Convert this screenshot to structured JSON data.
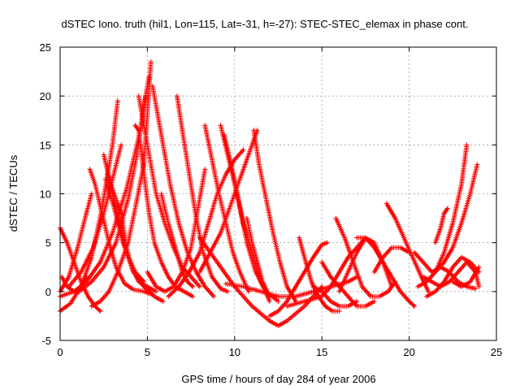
{
  "chart_data": {
    "type": "scatter",
    "title": "dSTEC Iono. truth (hil1, Lon=115, Lat=-31, h=-27): STEC-STEC_elemax in phase cont.",
    "xlabel": "GPS time / hours of day 284 of year 2006",
    "ylabel": "dSTEC  / TECUs",
    "xlim": [
      0,
      25
    ],
    "ylim": [
      -5,
      25
    ],
    "xticks": [
      "0",
      "5",
      "10",
      "15",
      "20",
      "25"
    ],
    "yticks": [
      "-5",
      "0",
      "5",
      "10",
      "15",
      "20",
      "25"
    ],
    "grid": true,
    "marker": "plus",
    "color": "#ff0000",
    "series": [
      {
        "x": [
          0.0,
          0.6,
          1.2,
          1.8,
          2.4,
          3.0,
          3.3
        ],
        "y": [
          -2.0,
          -1.2,
          0.5,
          3.5,
          8.5,
          15.0,
          19.5
        ]
      },
      {
        "x": [
          1.1,
          1.8,
          2.5,
          3.2,
          3.9,
          4.4,
          4.8,
          5.1
        ],
        "y": [
          0.0,
          1.0,
          2.5,
          5.0,
          9.5,
          14.0,
          19.0,
          22.0
        ]
      },
      {
        "x": [
          0.0,
          0.8,
          1.5,
          2.3,
          3.0,
          3.8,
          4.6,
          4.9
        ],
        "y": [
          -0.5,
          0.0,
          1.0,
          3.0,
          6.0,
          10.5,
          16.5,
          20.0
        ]
      },
      {
        "x": [
          0.5,
          1.2,
          1.9,
          2.5,
          3.0,
          3.5
        ],
        "y": [
          0.5,
          2.0,
          4.5,
          8.0,
          11.5,
          15.0
        ]
      },
      {
        "x": [
          1.8,
          2.3,
          2.8,
          3.3,
          3.9,
          4.3,
          4.8,
          5.2
        ],
        "y": [
          -1.5,
          -1.0,
          0.0,
          2.0,
          5.0,
          8.5,
          13.0,
          23.5
        ]
      },
      {
        "x": [
          0.0,
          0.4,
          0.8,
          1.2,
          1.6,
          2.0,
          2.3
        ],
        "y": [
          6.5,
          5.0,
          3.0,
          1.0,
          -0.5,
          -1.5,
          -2.0
        ]
      },
      {
        "x": [
          0.1,
          0.4,
          0.8,
          1.2,
          1.5
        ],
        "y": [
          1.5,
          0.5,
          0.0,
          0.5,
          1.5
        ]
      },
      {
        "x": [
          0.0,
          0.5,
          1.0,
          1.5,
          1.8
        ],
        "y": [
          0.0,
          1.5,
          4.5,
          8.0,
          10.0
        ]
      },
      {
        "x": [
          1.7,
          2.0,
          2.4,
          2.8,
          3.2,
          3.7,
          4.2,
          4.8,
          5.3
        ],
        "y": [
          12.5,
          11.0,
          8.0,
          5.0,
          2.5,
          0.8,
          0.2,
          0.0,
          -0.3
        ]
      },
      {
        "x": [
          2.5,
          3.0,
          3.4,
          3.8,
          4.3,
          4.8
        ],
        "y": [
          14.0,
          10.0,
          7.0,
          4.0,
          2.0,
          1.0
        ]
      },
      {
        "x": [
          2.7,
          3.1,
          3.5,
          3.8,
          4.1,
          4.5,
          5.0,
          5.5
        ],
        "y": [
          12.0,
          10.0,
          8.0,
          4.5,
          2.5,
          1.0,
          0.5,
          0.0
        ]
      },
      {
        "x": [
          2.6,
          3.1,
          3.6,
          4.2,
          4.8,
          5.4,
          5.9
        ],
        "y": [
          11.5,
          8.5,
          5.0,
          2.0,
          0.5,
          -0.5,
          -1.0
        ]
      },
      {
        "x": [
          4.5,
          5.0,
          5.5,
          6.0,
          6.5,
          7.0,
          7.5,
          8.0
        ],
        "y": [
          20.0,
          15.0,
          10.0,
          7.0,
          4.5,
          2.5,
          1.5,
          0.5
        ]
      },
      {
        "x": [
          5.3,
          5.8,
          6.3,
          6.8,
          7.3,
          7.8,
          8.3,
          8.8
        ],
        "y": [
          21.0,
          16.0,
          11.0,
          7.0,
          4.0,
          2.0,
          0.5,
          -0.5
        ]
      },
      {
        "x": [
          4.3,
          4.5,
          4.8,
          5.1,
          5.4,
          5.8,
          6.2,
          6.6,
          7.1,
          7.6
        ],
        "y": [
          17.0,
          16.5,
          12.0,
          8.0,
          5.0,
          3.0,
          1.5,
          0.5,
          0.0,
          -0.5
        ]
      },
      {
        "x": [
          5.0,
          5.5,
          6.0,
          6.5,
          7.0,
          7.5,
          8.0,
          8.3
        ],
        "y": [
          2.0,
          0.5,
          0.0,
          0.5,
          2.0,
          4.5,
          9.5,
          12.5
        ]
      },
      {
        "x": [
          6.7,
          7.0,
          7.4,
          7.8,
          8.2,
          8.7,
          9.2,
          9.6
        ],
        "y": [
          20.0,
          16.5,
          12.0,
          7.5,
          4.0,
          1.5,
          0.3,
          0.0
        ]
      },
      {
        "x": [
          5.8,
          6.2,
          6.6,
          7.0,
          7.3,
          7.6
        ],
        "y": [
          10.0,
          7.0,
          4.5,
          2.0,
          1.0,
          0.5
        ]
      },
      {
        "x": [
          6.2,
          6.8,
          7.4,
          8.0,
          8.5,
          9.0,
          9.5,
          10.0,
          10.5
        ],
        "y": [
          -0.5,
          0.5,
          2.0,
          4.0,
          7.0,
          10.0,
          12.0,
          13.5,
          14.5
        ]
      },
      {
        "x": [
          8.3,
          8.7,
          9.1,
          9.5,
          9.9,
          10.3,
          10.8
        ],
        "y": [
          17.0,
          13.5,
          10.0,
          7.0,
          4.0,
          2.0,
          0.0
        ]
      },
      {
        "x": [
          9.2,
          9.6,
          10.0,
          10.3,
          10.7,
          11.2,
          11.8,
          12.5
        ],
        "y": [
          17.0,
          14.0,
          11.0,
          8.5,
          5.0,
          2.0,
          0.0,
          -1.0
        ]
      },
      {
        "x": [
          9.4,
          9.8,
          10.1,
          10.5,
          11.0,
          11.5,
          12.0
        ],
        "y": [
          16.0,
          13.0,
          10.5,
          7.0,
          4.0,
          1.0,
          -1.0
        ]
      },
      {
        "x": [
          8.0,
          8.6,
          9.2,
          9.8,
          10.4,
          11.0,
          11.3
        ],
        "y": [
          2.0,
          4.0,
          6.0,
          9.0,
          12.0,
          15.0,
          16.5
        ]
      },
      {
        "x": [
          11.1,
          11.4,
          11.8,
          12.2,
          12.6,
          13.0,
          13.5
        ],
        "y": [
          16.5,
          13.0,
          9.5,
          6.0,
          3.0,
          0.5,
          -1.0
        ]
      },
      {
        "x": [
          10.7,
          11.0,
          11.3,
          11.6,
          12.0
        ],
        "y": [
          7.5,
          5.0,
          3.0,
          1.0,
          -0.5
        ]
      },
      {
        "x": [
          8.0,
          9.0,
          10.0,
          11.0,
          12.0,
          12.5,
          13.0,
          14.0,
          15.0
        ],
        "y": [
          5.5,
          3.0,
          0.5,
          -1.5,
          -3.0,
          -3.5,
          -3.0,
          -1.5,
          0.5
        ]
      },
      {
        "x": [
          9.5,
          10.5,
          11.5,
          12.5,
          13.5,
          14.5,
          15.5,
          16.5,
          17.0
        ],
        "y": [
          0.8,
          0.5,
          0.0,
          -0.5,
          -0.5,
          0.0,
          0.5,
          1.0,
          1.5
        ]
      },
      {
        "x": [
          12.0,
          12.5,
          13.0,
          13.5,
          14.0,
          14.5,
          15.0,
          15.3
        ],
        "y": [
          -2.5,
          -2.0,
          -1.0,
          0.5,
          2.0,
          3.5,
          4.8,
          5.0
        ]
      },
      {
        "x": [
          13.7,
          14.0,
          14.4,
          14.8,
          15.2,
          15.6,
          16.0
        ],
        "y": [
          5.5,
          3.5,
          1.0,
          -0.5,
          -1.5,
          -2.0,
          -2.0
        ]
      },
      {
        "x": [
          13.0,
          14.0,
          15.0,
          15.5,
          16.0,
          16.5,
          17.0,
          17.5
        ],
        "y": [
          -1.5,
          -1.0,
          -0.5,
          0.5,
          2.0,
          3.5,
          4.5,
          5.5
        ]
      },
      {
        "x": [
          14.5,
          15.0,
          15.5,
          16.0,
          16.5,
          17.0
        ],
        "y": [
          0.5,
          0.0,
          -1.0,
          -1.5,
          -1.5,
          -1.0
        ]
      },
      {
        "x": [
          15.0,
          15.5,
          16.0,
          16.5,
          17.0,
          17.5,
          18.0
        ],
        "y": [
          3.0,
          1.5,
          0.5,
          -0.5,
          -1.5,
          -1.5,
          -1.0
        ]
      },
      {
        "x": [
          15.8,
          16.3,
          16.8,
          17.3,
          17.8,
          18.3,
          18.8,
          19.2
        ],
        "y": [
          7.5,
          5.5,
          3.0,
          0.5,
          -0.5,
          -0.5,
          0.0,
          1.0
        ]
      },
      {
        "x": [
          16.0,
          16.5,
          17.0,
          17.5,
          18.0,
          18.5,
          19.0
        ],
        "y": [
          0.0,
          2.0,
          4.0,
          5.5,
          5.0,
          3.0,
          0.5
        ]
      },
      {
        "x": [
          17.0,
          17.5,
          18.0,
          18.5,
          19.0,
          19.5,
          20.0,
          20.3
        ],
        "y": [
          5.5,
          5.5,
          4.5,
          3.0,
          1.5,
          0.0,
          -1.0,
          -1.5
        ]
      },
      {
        "x": [
          18.0,
          18.5,
          19.0,
          19.5,
          20.0
        ],
        "y": [
          2.0,
          3.5,
          4.5,
          4.5,
          4.0
        ]
      },
      {
        "x": [
          18.7,
          19.2,
          19.7,
          20.2,
          20.7,
          21.1
        ],
        "y": [
          9.0,
          7.5,
          5.5,
          3.5,
          1.5,
          0.0
        ]
      },
      {
        "x": [
          20.3,
          20.8,
          21.3,
          21.8,
          22.3,
          22.8,
          23.3,
          23.8
        ],
        "y": [
          4.0,
          3.0,
          2.0,
          2.5,
          2.0,
          1.0,
          0.5,
          0.3
        ]
      },
      {
        "x": [
          20.5,
          21.0,
          21.5,
          22.0,
          22.5,
          23.0,
          23.3
        ],
        "y": [
          0.5,
          1.0,
          2.0,
          4.0,
          7.0,
          11.0,
          15.0
        ]
      },
      {
        "x": [
          21.5,
          22.0,
          22.5,
          23.0,
          23.5,
          23.9
        ],
        "y": [
          2.0,
          3.0,
          4.5,
          7.0,
          10.0,
          13.0
        ]
      },
      {
        "x": [
          20.8,
          21.3,
          21.8,
          22.3,
          22.8,
          23.3,
          23.8,
          24.0
        ],
        "y": [
          1.5,
          1.0,
          0.5,
          1.0,
          2.0,
          3.0,
          2.0,
          0.5
        ]
      },
      {
        "x": [
          21.0,
          21.5,
          22.0,
          22.5,
          23.0,
          23.5,
          24.0
        ],
        "y": [
          -0.5,
          0.0,
          1.0,
          2.5,
          3.5,
          3.0,
          2.0
        ]
      },
      {
        "x": [
          21.5,
          21.8,
          22.0,
          22.2
        ],
        "y": [
          5.0,
          6.5,
          8.0,
          8.5
        ]
      },
      {
        "x": [
          22.5,
          23.0,
          23.5,
          24.0
        ],
        "y": [
          1.0,
          0.5,
          1.0,
          2.5
        ]
      }
    ]
  }
}
